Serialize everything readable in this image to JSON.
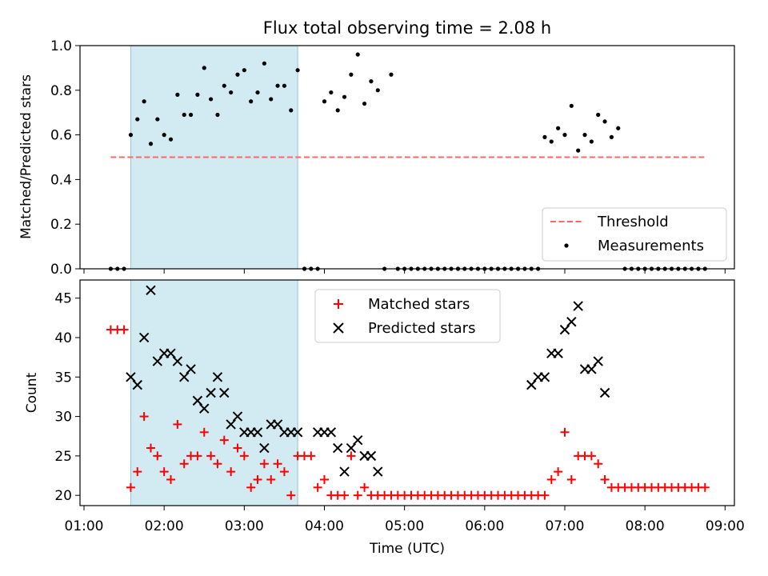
{
  "chart_data": [
    {
      "type": "scatter",
      "title": "Flux total observing time = 2.08 h",
      "xlabel": "",
      "ylabel": "Matched/Predicted stars",
      "xlim": [
        "00:57",
        "09:07"
      ],
      "ylim": [
        0,
        1.0
      ],
      "yticks": [
        "0.0",
        "0.2",
        "0.4",
        "0.6",
        "0.8",
        "1.0"
      ],
      "shaded_region": {
        "start": "01:35",
        "end": "03:40",
        "color": "#add8e6"
      },
      "legend": {
        "placement": "lower right",
        "entries": [
          "Threshold",
          "Measurements"
        ]
      },
      "threshold": {
        "name": "Threshold",
        "value": 0.5,
        "x_start": "01:20",
        "x_end": "08:45",
        "color": "#ff6666"
      },
      "series": [
        {
          "name": "Measurements",
          "color": "#000000",
          "x": [
            "01:20",
            "01:25",
            "01:30",
            "01:35",
            "01:40",
            "01:45",
            "01:50",
            "01:55",
            "02:00",
            "02:05",
            "02:10",
            "02:15",
            "02:20",
            "02:25",
            "02:30",
            "02:35",
            "02:40",
            "02:45",
            "02:50",
            "02:55",
            "03:00",
            "03:05",
            "03:10",
            "03:15",
            "03:20",
            "03:25",
            "03:30",
            "03:35",
            "03:40",
            "03:45",
            "03:50",
            "03:55",
            "04:00",
            "04:05",
            "04:10",
            "04:15",
            "04:20",
            "04:25",
            "04:30",
            "04:35",
            "04:40",
            "04:45",
            "04:50",
            "04:55",
            "05:00",
            "05:05",
            "05:10",
            "05:15",
            "05:20",
            "05:25",
            "05:30",
            "05:35",
            "05:40",
            "05:45",
            "05:50",
            "05:55",
            "06:00",
            "06:05",
            "06:10",
            "06:15",
            "06:20",
            "06:25",
            "06:30",
            "06:35",
            "06:40",
            "06:45",
            "06:50",
            "06:55",
            "07:00",
            "07:05",
            "07:10",
            "07:15",
            "07:20",
            "07:25",
            "07:30",
            "07:35",
            "07:40",
            "07:45",
            "07:50",
            "07:55",
            "08:00",
            "08:05",
            "08:10",
            "08:15",
            "08:20",
            "08:25",
            "08:30",
            "08:35",
            "08:40",
            "08:45"
          ],
          "y": [
            0,
            0,
            0,
            0.6,
            0.67,
            0.75,
            0.56,
            0.67,
            0.6,
            0.58,
            0.78,
            0.69,
            0.69,
            0.78,
            0.9,
            0.76,
            0.69,
            0.82,
            0.79,
            0.87,
            0.89,
            0.75,
            0.79,
            0.92,
            0.76,
            0.82,
            0.82,
            0.71,
            0.89,
            0,
            0,
            0,
            0.75,
            0.79,
            0.71,
            0.77,
            0.87,
            0.96,
            0.74,
            0.84,
            0.8,
            0,
            0.87,
            0,
            0,
            0,
            0,
            0,
            0,
            0,
            0,
            0,
            0,
            0,
            0,
            0,
            0,
            0,
            0,
            0,
            0,
            0,
            0,
            0,
            0,
            0.59,
            0.57,
            0.63,
            0.6,
            0.73,
            0.53,
            0.6,
            0.57,
            0.69,
            0.66,
            0.59,
            0.63,
            0,
            0,
            0,
            0,
            0,
            0,
            0,
            0,
            0,
            0,
            0,
            0,
            0
          ]
        }
      ]
    },
    {
      "type": "scatter",
      "title": "",
      "xlabel": "Time (UTC)",
      "ylabel": "Count",
      "xlim": [
        "00:57",
        "09:07"
      ],
      "ylim": [
        18.7,
        47.3
      ],
      "yticks": [
        "20",
        "25",
        "30",
        "35",
        "40",
        "45"
      ],
      "xticks": [
        "01:00",
        "02:00",
        "03:00",
        "04:00",
        "05:00",
        "06:00",
        "07:00",
        "08:00",
        "09:00"
      ],
      "shaded_region": {
        "start": "01:35",
        "end": "03:40",
        "color": "#add8e6"
      },
      "legend": {
        "placement": "upper center",
        "entries": [
          "Matched stars",
          "Predicted stars"
        ]
      },
      "series": [
        {
          "name": "Matched stars",
          "marker": "+",
          "color": "#ff0000",
          "x": [
            "01:20",
            "01:25",
            "01:30",
            "01:35",
            "01:40",
            "01:45",
            "01:50",
            "01:55",
            "02:00",
            "02:05",
            "02:10",
            "02:15",
            "02:20",
            "02:25",
            "02:30",
            "02:35",
            "02:40",
            "02:45",
            "02:50",
            "02:55",
            "03:00",
            "03:05",
            "03:10",
            "03:15",
            "03:20",
            "03:25",
            "03:30",
            "03:35",
            "03:40",
            "03:45",
            "03:50",
            "03:55",
            "04:00",
            "04:05",
            "04:10",
            "04:15",
            "04:20",
            "04:25",
            "04:30",
            "04:35",
            "04:40",
            "04:45",
            "04:50",
            "04:55",
            "05:00",
            "05:05",
            "05:10",
            "05:15",
            "05:20",
            "05:25",
            "05:30",
            "05:35",
            "05:40",
            "05:45",
            "05:50",
            "05:55",
            "06:00",
            "06:05",
            "06:10",
            "06:15",
            "06:20",
            "06:25",
            "06:30",
            "06:35",
            "06:40",
            "06:45",
            "06:50",
            "06:55",
            "07:00",
            "07:05",
            "07:10",
            "07:15",
            "07:20",
            "07:25",
            "07:30",
            "07:35",
            "07:40",
            "07:45",
            "07:50",
            "07:55",
            "08:00",
            "08:05",
            "08:10",
            "08:15",
            "08:20",
            "08:25",
            "08:30",
            "08:35",
            "08:40",
            "08:45"
          ],
          "y": [
            41,
            41,
            41,
            21,
            23,
            30,
            26,
            25,
            23,
            22,
            29,
            24,
            25,
            25,
            28,
            25,
            24,
            27,
            23,
            26,
            25,
            21,
            22,
            24,
            22,
            24,
            23,
            20,
            25,
            25,
            25,
            21,
            22,
            20,
            20,
            20,
            25,
            20,
            21,
            20,
            20,
            20,
            20,
            20,
            20,
            20,
            20,
            20,
            20,
            20,
            20,
            20,
            20,
            20,
            20,
            20,
            20,
            20,
            20,
            20,
            20,
            20,
            20,
            20,
            20,
            20,
            22,
            23,
            28,
            22,
            25,
            25,
            25,
            24,
            22,
            21,
            21,
            21,
            21,
            21,
            21,
            21,
            21,
            21,
            21,
            21,
            21,
            21,
            21,
            21
          ]
        },
        {
          "name": "Predicted stars",
          "marker": "x",
          "color": "#000000",
          "x": [
            "01:35",
            "01:40",
            "01:45",
            "01:50",
            "01:55",
            "02:00",
            "02:05",
            "02:10",
            "02:15",
            "02:20",
            "02:25",
            "02:30",
            "02:35",
            "02:40",
            "02:45",
            "02:50",
            "02:55",
            "03:00",
            "03:05",
            "03:10",
            "03:15",
            "03:20",
            "03:25",
            "03:30",
            "03:35",
            "03:40",
            "03:55",
            "04:00",
            "04:05",
            "04:10",
            "04:15",
            "04:20",
            "04:25",
            "04:30",
            "04:35",
            "04:40",
            "04:45",
            "06:35",
            "06:40",
            "06:45",
            "06:50",
            "06:55",
            "07:00",
            "07:05",
            "07:10",
            "07:15",
            "07:20",
            "07:25",
            "07:30"
          ],
          "y": [
            35,
            34,
            40,
            46,
            37,
            38,
            38,
            37,
            35,
            36,
            32,
            31,
            33,
            35,
            33,
            29,
            30,
            28,
            28,
            28,
            26,
            29,
            29,
            28,
            28,
            28,
            28,
            28,
            28,
            26,
            23,
            26,
            27,
            25,
            25,
            23,
            null,
            34,
            35,
            35,
            38,
            38,
            41,
            42,
            44,
            36,
            36,
            37,
            33
          ]
        }
      ]
    }
  ]
}
